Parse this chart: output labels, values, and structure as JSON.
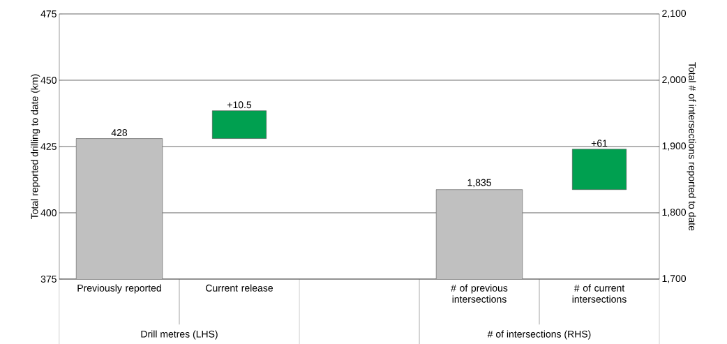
{
  "chart_data": {
    "type": "bar",
    "categories": [
      "Previously reported",
      "Current release",
      null,
      "# of previous intersections",
      "# of current intersections"
    ],
    "ylabel": "Total reported drilling to date (km)",
    "y2label": "Total # of intersections reported to date",
    "ylim": [
      375,
      475
    ],
    "yticks": [
      375,
      400,
      425,
      450,
      475
    ],
    "y2lim": [
      1700,
      2100
    ],
    "y2ticks": [
      {
        "value": 1700,
        "label": "1,700"
      },
      {
        "value": 1800,
        "label": "1,800"
      },
      {
        "value": 1900,
        "label": "1,900"
      },
      {
        "value": 2000,
        "label": "2,000"
      },
      {
        "value": 2100,
        "label": "2,100"
      }
    ],
    "grid": "y",
    "annotations": [
      "Drill metres (LHS)",
      "# of intersections (RHS)"
    ],
    "series": [
      {
        "color": "#c0c0c0",
        "values": [
          428,
          null,
          null,
          null,
          null
        ],
        "value_labels": [
          "428",
          null,
          null,
          null,
          null
        ]
      },
      {
        "color": "#00a050",
        "base": [
          null,
          428,
          null,
          null,
          null
        ],
        "values": [
          null,
          10.5,
          null,
          null,
          null
        ],
        "value_labels": [
          null,
          "+10.5",
          null,
          null,
          null
        ]
      },
      {
        "axis": "y2",
        "color": "#c0c0c0",
        "values": [
          null,
          null,
          null,
          1835,
          null
        ],
        "value_labels": [
          null,
          null,
          null,
          "1,835",
          null
        ]
      },
      {
        "axis": "y2",
        "color": "#00a050",
        "base": [
          null,
          null,
          null,
          null,
          1835
        ],
        "values": [
          null,
          null,
          null,
          null,
          61
        ],
        "value_labels": [
          null,
          null,
          null,
          null,
          "+61"
        ]
      }
    ]
  }
}
